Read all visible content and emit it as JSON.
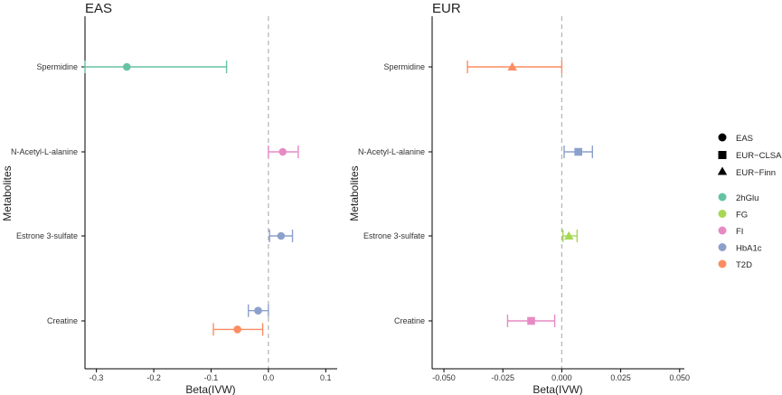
{
  "chart_data": {
    "type": "forest",
    "shared": {
      "categories": [
        "Spermidine",
        "N-Acetyl-L-alanine",
        "Estrone 3-sulfate",
        "Creatine"
      ],
      "ylabel": "Metabolites",
      "xlabel": "Beta(IVW)",
      "reference_line_x": 0
    },
    "panels": [
      {
        "title": "EAS",
        "xlim": [
          -0.32,
          0.12
        ],
        "xticks": [
          -0.3,
          -0.2,
          -0.1,
          0.0,
          0.1
        ],
        "xtick_labels": [
          "-0.3",
          "-0.2",
          "-0.1",
          "0.0",
          "0.1"
        ],
        "points": [
          {
            "metabolite": "Spermidine",
            "beta": -0.247,
            "lower": -0.32,
            "upper": -0.073,
            "population": "EAS",
            "trait": "2hGlu",
            "offset": 0
          },
          {
            "metabolite": "N-Acetyl-L-alanine",
            "beta": 0.025,
            "lower": 0.0,
            "upper": 0.052,
            "population": "EAS",
            "trait": "FI",
            "offset": 0
          },
          {
            "metabolite": "Estrone 3-sulfate",
            "beta": 0.022,
            "lower": 0.002,
            "upper": 0.042,
            "population": "EAS",
            "trait": "HbA1c",
            "offset": 0
          },
          {
            "metabolite": "Creatine",
            "beta": -0.054,
            "lower": -0.096,
            "upper": -0.01,
            "population": "EAS",
            "trait": "T2D",
            "offset": -0.1
          },
          {
            "metabolite": "Creatine",
            "beta": -0.018,
            "lower": -0.035,
            "upper": 0.0,
            "population": "EAS",
            "trait": "HbA1c",
            "offset": 0.12
          }
        ]
      },
      {
        "title": "EUR",
        "xlim": [
          -0.055,
          0.052
        ],
        "xticks": [
          -0.05,
          -0.025,
          0.0,
          0.025,
          0.05
        ],
        "xtick_labels": [
          "-0.050",
          "-0.025",
          "0.000",
          "0.025",
          "0.050"
        ],
        "points": [
          {
            "metabolite": "Spermidine",
            "beta": -0.021,
            "lower": -0.04,
            "upper": 0.0,
            "population": "EUR-Finn",
            "trait": "T2D",
            "offset": 0
          },
          {
            "metabolite": "N-Acetyl-L-alanine",
            "beta": 0.007,
            "lower": 0.001,
            "upper": 0.013,
            "population": "EUR-CLSA",
            "trait": "HbA1c",
            "offset": 0
          },
          {
            "metabolite": "Estrone 3-sulfate",
            "beta": 0.003,
            "lower": 0.0005,
            "upper": 0.0065,
            "population": "EUR-Finn",
            "trait": "FG",
            "offset": 0
          },
          {
            "metabolite": "Creatine",
            "beta": -0.013,
            "lower": -0.023,
            "upper": -0.003,
            "population": "EUR-CLSA",
            "trait": "FI",
            "offset": 0
          }
        ]
      }
    ],
    "legend": {
      "position": "right",
      "shapes": [
        {
          "label": "EAS",
          "shape": "circle"
        },
        {
          "label": "EUR−CLSA",
          "shape": "square"
        },
        {
          "label": "EUR−Finn",
          "shape": "triangle"
        }
      ],
      "colors": [
        {
          "label": "2hGlu",
          "color": "#66c2a5"
        },
        {
          "label": "FG",
          "color": "#a6d854"
        },
        {
          "label": "FI",
          "color": "#e78ac3"
        },
        {
          "label": "HbA1c",
          "color": "#8da0cb"
        },
        {
          "label": "T2D",
          "color": "#fc8d62"
        }
      ]
    }
  }
}
